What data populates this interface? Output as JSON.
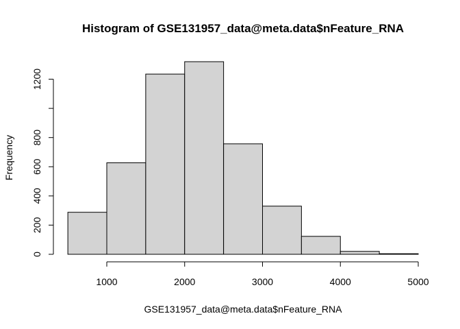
{
  "chart_data": {
    "type": "bar",
    "title": "Histogram of GSE131957_data@meta.data$nFeature_RNA",
    "xlabel": "GSE131957_data@meta.data$nFeature_RNA",
    "ylabel": "Frequency",
    "bins": [
      {
        "start": 500,
        "end": 1000,
        "count": 288
      },
      {
        "start": 1000,
        "end": 1500,
        "count": 627
      },
      {
        "start": 1500,
        "end": 2000,
        "count": 1235
      },
      {
        "start": 2000,
        "end": 2500,
        "count": 1320
      },
      {
        "start": 2500,
        "end": 3000,
        "count": 757
      },
      {
        "start": 3000,
        "end": 3500,
        "count": 330
      },
      {
        "start": 3500,
        "end": 4000,
        "count": 123
      },
      {
        "start": 4000,
        "end": 4500,
        "count": 20
      },
      {
        "start": 4500,
        "end": 5000,
        "count": 4
      }
    ],
    "xticks": [
      1000,
      2000,
      3000,
      4000,
      5000
    ],
    "yticks": [
      0,
      200,
      400,
      600,
      800,
      1000,
      1200
    ],
    "ytick_labels": [
      "0",
      "200",
      "400",
      "600",
      "800",
      "",
      "1200"
    ],
    "xlim": [
      1000,
      5000
    ],
    "ylim": [
      0,
      1320
    ],
    "bar_fill": "#d3d3d3",
    "grid": false,
    "legend": "none"
  }
}
